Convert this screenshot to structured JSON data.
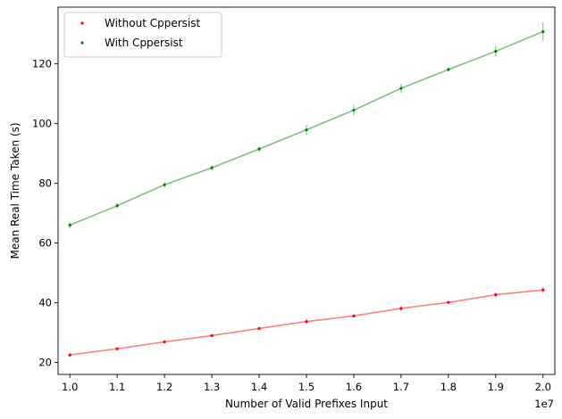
{
  "chart_data": {
    "type": "line",
    "xlabel": "Number of Valid Prefixes Input",
    "ylabel": "Mean Real Time Taken (s)",
    "x_offset_label": "1e7",
    "xlim": [
      0.975,
      2.025
    ],
    "ylim": [
      16,
      139
    ],
    "x_ticks": [
      1.0,
      1.1,
      1.2,
      1.3,
      1.4,
      1.5,
      1.6,
      1.7,
      1.8,
      1.9,
      2.0
    ],
    "x_tick_labels": [
      "1.0",
      "1.1",
      "1.2",
      "1.3",
      "1.4",
      "1.5",
      "1.6",
      "1.7",
      "1.8",
      "1.9",
      "2.0"
    ],
    "y_ticks": [
      20,
      40,
      60,
      80,
      100,
      120
    ],
    "y_tick_labels": [
      "20",
      "40",
      "60",
      "80",
      "100",
      "120"
    ],
    "x": [
      1.0,
      1.1,
      1.2,
      1.3,
      1.4,
      1.5,
      1.6,
      1.7,
      1.8,
      1.9,
      2.0
    ],
    "legend_position": "upper-left",
    "series": [
      {
        "name": "Without Cppersist",
        "color": "#ff0000",
        "line_color": "#ff8080",
        "values": [
          22.5,
          24.6,
          26.9,
          29.0,
          31.4,
          33.7,
          35.6,
          38.1,
          40.1,
          42.7,
          44.3
        ],
        "errors": [
          0.5,
          0.4,
          0.5,
          0.4,
          0.5,
          0.8,
          0.5,
          0.8,
          0.4,
          0.9,
          1.0
        ]
      },
      {
        "name": "With Cppersist",
        "color": "#008000",
        "line_color": "#80bf80",
        "values": [
          66.0,
          72.5,
          79.5,
          85.2,
          91.5,
          97.9,
          104.5,
          111.8,
          118.1,
          124.2,
          130.8
        ],
        "errors": [
          1.0,
          0.8,
          1.0,
          0.8,
          0.8,
          1.6,
          1.8,
          1.6,
          0.6,
          1.7,
          3.0
        ]
      }
    ]
  }
}
